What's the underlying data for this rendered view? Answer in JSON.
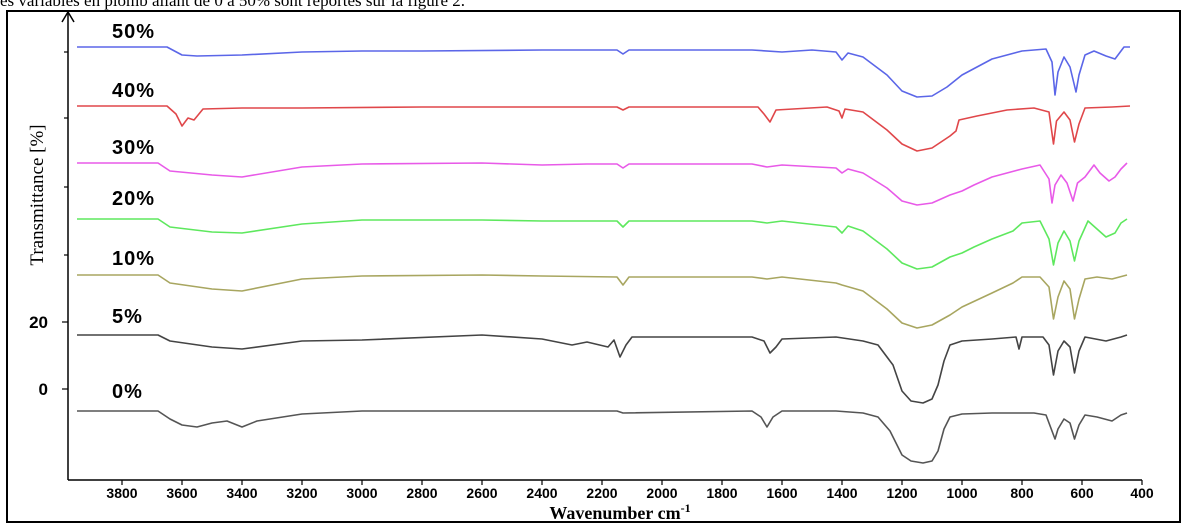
{
  "page": {
    "top_text": "es variables en plomb allant de 0 à 50% sont reportés sur la figure 2."
  },
  "chart_data": {
    "type": "line",
    "title": "",
    "xlabel": "Wavenumber cm",
    "xlabel_superscript": "-1",
    "ylabel": "Transmittance [%]",
    "xlim": [
      3980,
      400
    ],
    "x_reversed": true,
    "x_ticks": [
      "3800",
      "3600",
      "3400",
      "3200",
      "3000",
      "2800",
      "2600",
      "2400",
      "2200",
      "2000",
      "1800",
      "1600",
      "1400",
      "1200",
      "1000",
      "800",
      "600",
      "400"
    ],
    "y_ticks": [
      "20",
      "0"
    ],
    "grid": false,
    "legend": "inline labels left of each curve",
    "series": [
      {
        "name": "50%",
        "color": "#5b66e8",
        "baseline": 0,
        "points": [
          [
            3950,
            0
          ],
          [
            3650,
            0
          ],
          [
            3600,
            -8
          ],
          [
            3550,
            -9
          ],
          [
            3400,
            -8
          ],
          [
            3200,
            -5
          ],
          [
            3000,
            -4
          ],
          [
            2800,
            -4
          ],
          [
            2400,
            -3
          ],
          [
            2150,
            -3
          ],
          [
            2130,
            -7
          ],
          [
            2110,
            -3
          ],
          [
            1700,
            -3
          ],
          [
            1600,
            -5
          ],
          [
            1500,
            -3
          ],
          [
            1420,
            -5
          ],
          [
            1400,
            -13
          ],
          [
            1380,
            -6
          ],
          [
            1330,
            -10
          ],
          [
            1250,
            -28
          ],
          [
            1200,
            -44
          ],
          [
            1150,
            -50
          ],
          [
            1100,
            -49
          ],
          [
            1050,
            -40
          ],
          [
            1000,
            -28
          ],
          [
            900,
            -12
          ],
          [
            800,
            -4
          ],
          [
            720,
            -2
          ],
          [
            700,
            -15
          ],
          [
            690,
            -48
          ],
          [
            680,
            -25
          ],
          [
            660,
            -10
          ],
          [
            640,
            -20
          ],
          [
            620,
            -45
          ],
          [
            610,
            -28
          ],
          [
            590,
            -8
          ],
          [
            560,
            -4
          ],
          [
            520,
            -9
          ],
          [
            490,
            -12
          ],
          [
            460,
            0
          ],
          [
            440,
            0
          ]
        ]
      },
      {
        "name": "40%",
        "color": "#e0474a",
        "baseline": 0,
        "points": [
          [
            3950,
            0
          ],
          [
            3650,
            0
          ],
          [
            3620,
            -8
          ],
          [
            3600,
            -20
          ],
          [
            3580,
            -12
          ],
          [
            3560,
            -14
          ],
          [
            3530,
            -3
          ],
          [
            3400,
            -2
          ],
          [
            3200,
            -2
          ],
          [
            2800,
            -1
          ],
          [
            2400,
            -1
          ],
          [
            2150,
            -1
          ],
          [
            2130,
            -4
          ],
          [
            2110,
            -1
          ],
          [
            1680,
            -1
          ],
          [
            1660,
            -8
          ],
          [
            1640,
            -16
          ],
          [
            1620,
            -4
          ],
          [
            1450,
            -1
          ],
          [
            1410,
            -5
          ],
          [
            1400,
            -12
          ],
          [
            1390,
            -3
          ],
          [
            1330,
            -6
          ],
          [
            1250,
            -24
          ],
          [
            1200,
            -38
          ],
          [
            1150,
            -45
          ],
          [
            1100,
            -42
          ],
          [
            1040,
            -30
          ],
          [
            1020,
            -25
          ],
          [
            1010,
            -14
          ],
          [
            950,
            -10
          ],
          [
            850,
            -4
          ],
          [
            760,
            -2
          ],
          [
            710,
            -6
          ],
          [
            695,
            -38
          ],
          [
            685,
            -15
          ],
          [
            660,
            -6
          ],
          [
            640,
            -14
          ],
          [
            625,
            -36
          ],
          [
            610,
            -18
          ],
          [
            590,
            -2
          ],
          [
            500,
            -1
          ],
          [
            440,
            0
          ]
        ]
      },
      {
        "name": "30%",
        "color": "#e85ae8",
        "baseline": 0,
        "points": [
          [
            3950,
            0
          ],
          [
            3680,
            0
          ],
          [
            3640,
            -8
          ],
          [
            3500,
            -12
          ],
          [
            3400,
            -14
          ],
          [
            3200,
            -4
          ],
          [
            3000,
            -1
          ],
          [
            2600,
            0
          ],
          [
            2400,
            -2
          ],
          [
            2250,
            -1
          ],
          [
            2150,
            -1
          ],
          [
            2130,
            -5
          ],
          [
            2110,
            -1
          ],
          [
            1700,
            -1
          ],
          [
            1650,
            -4
          ],
          [
            1600,
            -2
          ],
          [
            1420,
            -5
          ],
          [
            1400,
            -10
          ],
          [
            1380,
            -6
          ],
          [
            1330,
            -10
          ],
          [
            1250,
            -25
          ],
          [
            1200,
            -38
          ],
          [
            1150,
            -42
          ],
          [
            1100,
            -40
          ],
          [
            1040,
            -32
          ],
          [
            1000,
            -28
          ],
          [
            960,
            -22
          ],
          [
            900,
            -14
          ],
          [
            800,
            -6
          ],
          [
            740,
            -2
          ],
          [
            710,
            -16
          ],
          [
            700,
            -40
          ],
          [
            690,
            -22
          ],
          [
            670,
            -12
          ],
          [
            650,
            -20
          ],
          [
            630,
            -38
          ],
          [
            615,
            -20
          ],
          [
            590,
            -14
          ],
          [
            560,
            -2
          ],
          [
            540,
            -10
          ],
          [
            510,
            -18
          ],
          [
            490,
            -14
          ],
          [
            470,
            -6
          ],
          [
            450,
            0
          ]
        ]
      },
      {
        "name": "20%",
        "color": "#5ee85e",
        "baseline": 0,
        "points": [
          [
            3950,
            0
          ],
          [
            3680,
            0
          ],
          [
            3640,
            -8
          ],
          [
            3500,
            -13
          ],
          [
            3400,
            -14
          ],
          [
            3200,
            -5
          ],
          [
            3000,
            -1
          ],
          [
            2600,
            -1
          ],
          [
            2400,
            -2
          ],
          [
            2150,
            -2
          ],
          [
            2130,
            -8
          ],
          [
            2110,
            -2
          ],
          [
            1700,
            -2
          ],
          [
            1650,
            -4
          ],
          [
            1600,
            -2
          ],
          [
            1420,
            -8
          ],
          [
            1400,
            -14
          ],
          [
            1380,
            -7
          ],
          [
            1330,
            -12
          ],
          [
            1250,
            -30
          ],
          [
            1200,
            -44
          ],
          [
            1150,
            -50
          ],
          [
            1100,
            -48
          ],
          [
            1040,
            -38
          ],
          [
            1000,
            -34
          ],
          [
            960,
            -28
          ],
          [
            900,
            -20
          ],
          [
            830,
            -12
          ],
          [
            800,
            -4
          ],
          [
            740,
            -2
          ],
          [
            710,
            -20
          ],
          [
            695,
            -46
          ],
          [
            680,
            -24
          ],
          [
            660,
            -12
          ],
          [
            640,
            -22
          ],
          [
            625,
            -42
          ],
          [
            610,
            -22
          ],
          [
            580,
            -2
          ],
          [
            550,
            -10
          ],
          [
            520,
            -18
          ],
          [
            490,
            -14
          ],
          [
            470,
            -4
          ],
          [
            450,
            0
          ]
        ]
      },
      {
        "name": "10%",
        "color": "#a8a660",
        "baseline": 0,
        "points": [
          [
            3950,
            0
          ],
          [
            3680,
            0
          ],
          [
            3640,
            -8
          ],
          [
            3500,
            -14
          ],
          [
            3400,
            -16
          ],
          [
            3200,
            -4
          ],
          [
            3000,
            -1
          ],
          [
            2600,
            0
          ],
          [
            2400,
            -1
          ],
          [
            2150,
            -2
          ],
          [
            2130,
            -10
          ],
          [
            2110,
            -2
          ],
          [
            1700,
            -2
          ],
          [
            1650,
            -4
          ],
          [
            1600,
            -2
          ],
          [
            1420,
            -8
          ],
          [
            1400,
            -10
          ],
          [
            1330,
            -16
          ],
          [
            1250,
            -34
          ],
          [
            1200,
            -48
          ],
          [
            1150,
            -53
          ],
          [
            1100,
            -50
          ],
          [
            1040,
            -40
          ],
          [
            1000,
            -32
          ],
          [
            900,
            -18
          ],
          [
            830,
            -8
          ],
          [
            800,
            -2
          ],
          [
            740,
            -2
          ],
          [
            710,
            -12
          ],
          [
            695,
            -44
          ],
          [
            680,
            -22
          ],
          [
            660,
            -6
          ],
          [
            640,
            -14
          ],
          [
            625,
            -44
          ],
          [
            610,
            -24
          ],
          [
            590,
            -4
          ],
          [
            550,
            -2
          ],
          [
            500,
            -4
          ],
          [
            450,
            0
          ]
        ]
      },
      {
        "name": "5%",
        "color": "#444444",
        "baseline": 0,
        "points": [
          [
            3950,
            0
          ],
          [
            3680,
            0
          ],
          [
            3640,
            -6
          ],
          [
            3500,
            -12
          ],
          [
            3400,
            -14
          ],
          [
            3200,
            -6
          ],
          [
            3000,
            -5
          ],
          [
            2600,
            0
          ],
          [
            2400,
            -4
          ],
          [
            2300,
            -10
          ],
          [
            2250,
            -7
          ],
          [
            2180,
            -12
          ],
          [
            2160,
            -5
          ],
          [
            2140,
            -22
          ],
          [
            2120,
            -10
          ],
          [
            2100,
            -2
          ],
          [
            1700,
            -2
          ],
          [
            1660,
            -6
          ],
          [
            1640,
            -18
          ],
          [
            1620,
            -12
          ],
          [
            1600,
            -4
          ],
          [
            1420,
            -2
          ],
          [
            1330,
            -6
          ],
          [
            1280,
            -10
          ],
          [
            1230,
            -30
          ],
          [
            1200,
            -56
          ],
          [
            1170,
            -66
          ],
          [
            1130,
            -68
          ],
          [
            1100,
            -64
          ],
          [
            1080,
            -50
          ],
          [
            1060,
            -26
          ],
          [
            1040,
            -10
          ],
          [
            1000,
            -6
          ],
          [
            900,
            -4
          ],
          [
            820,
            -2
          ],
          [
            810,
            -14
          ],
          [
            800,
            -2
          ],
          [
            730,
            -2
          ],
          [
            710,
            -10
          ],
          [
            695,
            -40
          ],
          [
            680,
            -16
          ],
          [
            660,
            -6
          ],
          [
            640,
            -12
          ],
          [
            625,
            -38
          ],
          [
            610,
            -16
          ],
          [
            590,
            -2
          ],
          [
            520,
            -6
          ],
          [
            470,
            -2
          ],
          [
            450,
            0
          ]
        ]
      },
      {
        "name": "0%",
        "color": "#555555",
        "baseline": 0,
        "points": [
          [
            3950,
            0
          ],
          [
            3680,
            0
          ],
          [
            3640,
            -8
          ],
          [
            3600,
            -14
          ],
          [
            3550,
            -16
          ],
          [
            3500,
            -12
          ],
          [
            3450,
            -10
          ],
          [
            3400,
            -16
          ],
          [
            3350,
            -10
          ],
          [
            3200,
            -3
          ],
          [
            3000,
            0
          ],
          [
            2600,
            0
          ],
          [
            2400,
            0
          ],
          [
            2150,
            0
          ],
          [
            2130,
            -2
          ],
          [
            1700,
            0
          ],
          [
            1670,
            -6
          ],
          [
            1650,
            -16
          ],
          [
            1630,
            -6
          ],
          [
            1600,
            0
          ],
          [
            1420,
            0
          ],
          [
            1330,
            -2
          ],
          [
            1280,
            -6
          ],
          [
            1240,
            -20
          ],
          [
            1200,
            -44
          ],
          [
            1170,
            -50
          ],
          [
            1130,
            -52
          ],
          [
            1100,
            -50
          ],
          [
            1080,
            -40
          ],
          [
            1060,
            -18
          ],
          [
            1040,
            -6
          ],
          [
            1000,
            -3
          ],
          [
            900,
            -2
          ],
          [
            760,
            -2
          ],
          [
            720,
            -4
          ],
          [
            700,
            -20
          ],
          [
            690,
            -28
          ],
          [
            680,
            -18
          ],
          [
            660,
            -8
          ],
          [
            640,
            -12
          ],
          [
            625,
            -28
          ],
          [
            610,
            -14
          ],
          [
            590,
            -4
          ],
          [
            550,
            -6
          ],
          [
            500,
            -10
          ],
          [
            470,
            -4
          ],
          [
            450,
            -2
          ]
        ]
      }
    ]
  }
}
